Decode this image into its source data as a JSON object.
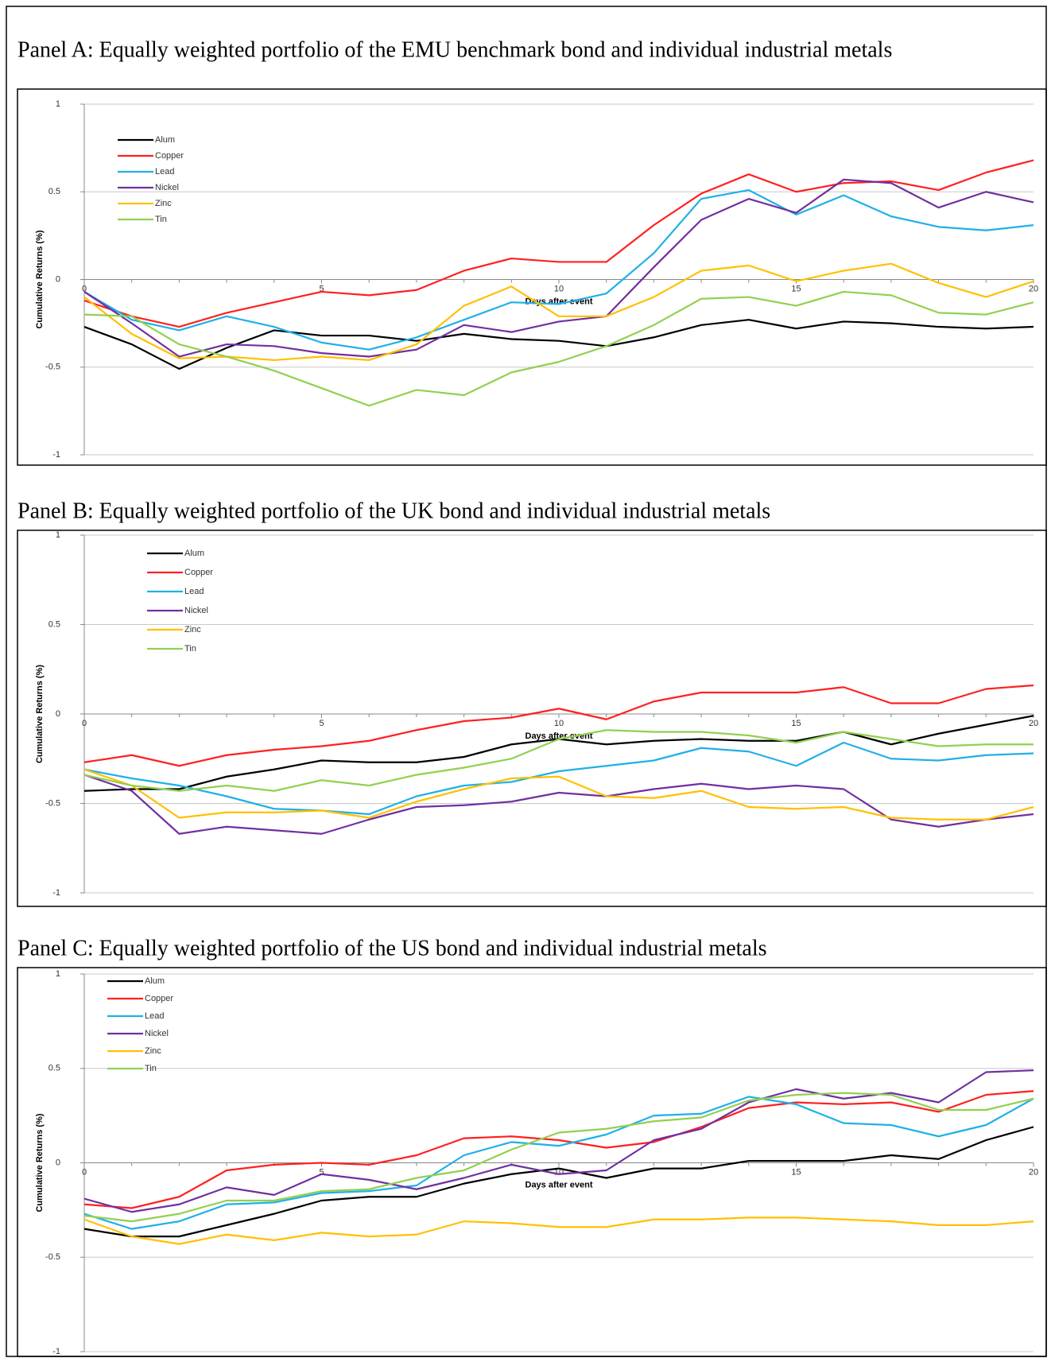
{
  "chart_data": [
    {
      "type": "line",
      "title": "Panel A: Equally weighted portfolio of the EMU benchmark bond and individual industrial metals",
      "x_label": "Days after event",
      "y_label": "Cumulative Returns (%)",
      "x": [
        0,
        1,
        2,
        3,
        4,
        5,
        6,
        7,
        8,
        9,
        10,
        11,
        12,
        13,
        14,
        15,
        16,
        17,
        18,
        19,
        20
      ],
      "xlim": [
        0,
        20
      ],
      "xticks": [
        0,
        5,
        10,
        15,
        20
      ],
      "ylim": [
        -1,
        1
      ],
      "yticks": [
        -1,
        -0.5,
        0,
        0.5,
        1
      ],
      "grid": true,
      "legend": "upper left",
      "series": [
        {
          "name": "Alum",
          "color": "#000000",
          "values": [
            -0.27,
            -0.37,
            -0.51,
            -0.39,
            -0.29,
            -0.32,
            -0.32,
            -0.35,
            -0.31,
            -0.34,
            -0.35,
            -0.38,
            -0.33,
            -0.26,
            -0.23,
            -0.28,
            -0.24,
            -0.25,
            -0.27,
            -0.28,
            -0.27
          ]
        },
        {
          "name": "Copper",
          "color": "#ff2020",
          "values": [
            -0.12,
            -0.21,
            -0.27,
            -0.19,
            -0.13,
            -0.07,
            -0.09,
            -0.06,
            0.05,
            0.12,
            0.1,
            0.1,
            0.31,
            0.49,
            0.6,
            0.5,
            0.55,
            0.56,
            0.51,
            0.61,
            0.68
          ]
        },
        {
          "name": "Lead",
          "color": "#1fb0e8",
          "values": [
            -0.07,
            -0.23,
            -0.29,
            -0.21,
            -0.27,
            -0.36,
            -0.4,
            -0.33,
            -0.23,
            -0.13,
            -0.14,
            -0.08,
            0.15,
            0.46,
            0.51,
            0.37,
            0.48,
            0.36,
            0.3,
            0.28,
            0.31
          ]
        },
        {
          "name": "Nickel",
          "color": "#7030a0",
          "values": [
            -0.07,
            -0.25,
            -0.44,
            -0.37,
            -0.38,
            -0.42,
            -0.44,
            -0.4,
            -0.26,
            -0.3,
            -0.24,
            -0.21,
            0.07,
            0.34,
            0.46,
            0.38,
            0.57,
            0.55,
            0.41,
            0.5,
            0.44
          ]
        },
        {
          "name": "Zinc",
          "color": "#ffc000",
          "values": [
            -0.1,
            -0.31,
            -0.45,
            -0.44,
            -0.46,
            -0.44,
            -0.46,
            -0.37,
            -0.15,
            -0.04,
            -0.21,
            -0.21,
            -0.1,
            0.05,
            0.08,
            -0.01,
            0.05,
            0.09,
            -0.02,
            -0.1,
            -0.01
          ]
        },
        {
          "name": "Tin",
          "color": "#92d050",
          "values": [
            -0.2,
            -0.21,
            -0.37,
            -0.44,
            -0.52,
            -0.62,
            -0.72,
            -0.63,
            -0.66,
            -0.53,
            -0.47,
            -0.38,
            -0.26,
            -0.11,
            -0.1,
            -0.15,
            -0.07,
            -0.09,
            -0.19,
            -0.2,
            -0.13
          ]
        }
      ]
    },
    {
      "type": "line",
      "title": "Panel B: Equally weighted portfolio of the UK bond and individual industrial metals",
      "x_label": "Days after event",
      "y_label": "Cumulative Returns (%)",
      "x": [
        0,
        1,
        2,
        3,
        4,
        5,
        6,
        7,
        8,
        9,
        10,
        11,
        12,
        13,
        14,
        15,
        16,
        17,
        18,
        19,
        20
      ],
      "xlim": [
        0,
        20
      ],
      "xticks": [
        0,
        5,
        10,
        15,
        20
      ],
      "ylim": [
        -1,
        1
      ],
      "yticks": [
        -1,
        -0.5,
        0,
        0.5,
        1
      ],
      "grid": true,
      "legend": "upper left",
      "series": [
        {
          "name": "Alum",
          "color": "#000000",
          "values": [
            -0.43,
            -0.42,
            -0.42,
            -0.35,
            -0.31,
            -0.26,
            -0.27,
            -0.27,
            -0.24,
            -0.17,
            -0.14,
            -0.17,
            -0.15,
            -0.14,
            -0.15,
            -0.15,
            -0.1,
            -0.17,
            -0.11,
            -0.06,
            -0.01
          ]
        },
        {
          "name": "Copper",
          "color": "#ff2020",
          "values": [
            -0.27,
            -0.23,
            -0.29,
            -0.23,
            -0.2,
            -0.18,
            -0.15,
            -0.09,
            -0.04,
            -0.02,
            0.03,
            -0.03,
            0.07,
            0.12,
            0.12,
            0.12,
            0.15,
            0.06,
            0.06,
            0.14,
            0.16
          ]
        },
        {
          "name": "Lead",
          "color": "#1fb0e8",
          "values": [
            -0.31,
            -0.36,
            -0.4,
            -0.46,
            -0.53,
            -0.54,
            -0.56,
            -0.46,
            -0.4,
            -0.38,
            -0.32,
            -0.29,
            -0.26,
            -0.19,
            -0.21,
            -0.29,
            -0.16,
            -0.25,
            -0.26,
            -0.23,
            -0.22
          ]
        },
        {
          "name": "Nickel",
          "color": "#7030a0",
          "values": [
            -0.34,
            -0.43,
            -0.67,
            -0.63,
            -0.65,
            -0.67,
            -0.59,
            -0.52,
            -0.51,
            -0.49,
            -0.44,
            -0.46,
            -0.42,
            -0.39,
            -0.42,
            -0.4,
            -0.42,
            -0.59,
            -0.63,
            -0.59,
            -0.56
          ]
        },
        {
          "name": "Zinc",
          "color": "#ffc000",
          "values": [
            -0.31,
            -0.4,
            -0.58,
            -0.55,
            -0.55,
            -0.54,
            -0.58,
            -0.49,
            -0.42,
            -0.36,
            -0.35,
            -0.46,
            -0.47,
            -0.43,
            -0.52,
            -0.53,
            -0.52,
            -0.58,
            -0.59,
            -0.59,
            -0.52
          ]
        },
        {
          "name": "Tin",
          "color": "#92d050",
          "values": [
            -0.34,
            -0.4,
            -0.43,
            -0.4,
            -0.43,
            -0.37,
            -0.4,
            -0.34,
            -0.3,
            -0.25,
            -0.14,
            -0.09,
            -0.1,
            -0.1,
            -0.12,
            -0.16,
            -0.1,
            -0.14,
            -0.18,
            -0.17,
            -0.17
          ]
        }
      ]
    },
    {
      "type": "line",
      "title": "Panel C: Equally weighted portfolio of the US bond and individual industrial metals",
      "x_label": "Days after event",
      "y_label": "Cumulative Returns (%)",
      "x": [
        0,
        1,
        2,
        3,
        4,
        5,
        6,
        7,
        8,
        9,
        10,
        11,
        12,
        13,
        14,
        15,
        16,
        17,
        18,
        19,
        20
      ],
      "xlim": [
        0,
        20
      ],
      "xticks": [
        0,
        5,
        10,
        15,
        20
      ],
      "ylim": [
        -1,
        1
      ],
      "yticks": [
        -1,
        -0.5,
        0,
        0.5,
        1
      ],
      "grid": true,
      "legend": "upper left",
      "series": [
        {
          "name": "Alum",
          "color": "#000000",
          "values": [
            -0.35,
            -0.39,
            -0.39,
            -0.33,
            -0.27,
            -0.2,
            -0.18,
            -0.18,
            -0.11,
            -0.06,
            -0.03,
            -0.08,
            -0.03,
            -0.03,
            0.01,
            0.01,
            0.01,
            0.04,
            0.02,
            0.12,
            0.19
          ]
        },
        {
          "name": "Copper",
          "color": "#ff2020",
          "values": [
            -0.22,
            -0.24,
            -0.18,
            -0.04,
            -0.01,
            0.0,
            -0.01,
            0.04,
            0.13,
            0.14,
            0.12,
            0.08,
            0.11,
            0.19,
            0.29,
            0.32,
            0.31,
            0.32,
            0.27,
            0.36,
            0.38
          ]
        },
        {
          "name": "Lead",
          "color": "#1fb0e8",
          "values": [
            -0.27,
            -0.35,
            -0.31,
            -0.22,
            -0.21,
            -0.16,
            -0.15,
            -0.12,
            0.04,
            0.11,
            0.09,
            0.15,
            0.25,
            0.26,
            0.35,
            0.31,
            0.21,
            0.2,
            0.14,
            0.2,
            0.34
          ]
        },
        {
          "name": "Nickel",
          "color": "#7030a0",
          "values": [
            -0.19,
            -0.26,
            -0.22,
            -0.13,
            -0.17,
            -0.06,
            -0.09,
            -0.14,
            -0.08,
            -0.01,
            -0.06,
            -0.04,
            0.12,
            0.18,
            0.32,
            0.39,
            0.34,
            0.37,
            0.32,
            0.48,
            0.49
          ]
        },
        {
          "name": "Zinc",
          "color": "#ffc000",
          "values": [
            -0.3,
            -0.39,
            -0.43,
            -0.38,
            -0.41,
            -0.37,
            -0.39,
            -0.38,
            -0.31,
            -0.32,
            -0.34,
            -0.34,
            -0.3,
            -0.3,
            -0.29,
            -0.29,
            -0.3,
            -0.31,
            -0.33,
            -0.33,
            -0.31
          ]
        },
        {
          "name": "Tin",
          "color": "#92d050",
          "values": [
            -0.28,
            -0.31,
            -0.27,
            -0.2,
            -0.2,
            -0.15,
            -0.14,
            -0.08,
            -0.04,
            0.07,
            0.16,
            0.18,
            0.22,
            0.24,
            0.33,
            0.36,
            0.37,
            0.36,
            0.28,
            0.28,
            0.34
          ]
        }
      ]
    }
  ]
}
